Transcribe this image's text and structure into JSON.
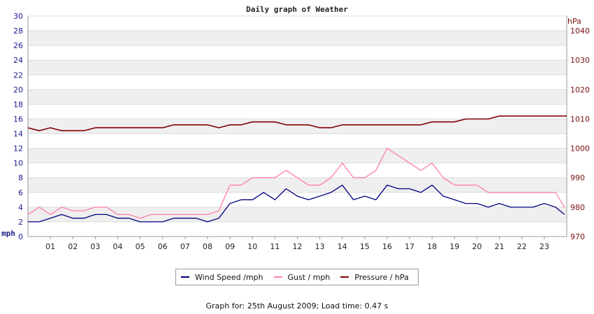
{
  "chart_data": {
    "type": "line",
    "title": "Daily graph of Weather",
    "y_left": {
      "unit": "mph",
      "range": [
        0,
        30
      ],
      "ticks": [
        "0",
        "2",
        "4",
        "6",
        "8",
        "10",
        "12",
        "14",
        "16",
        "18",
        "20",
        "22",
        "24",
        "26",
        "28",
        "30"
      ]
    },
    "y_right": {
      "unit": "hPa",
      "range": [
        970,
        1045
      ],
      "ticks": [
        "970",
        "980",
        "990",
        "1000",
        "1010",
        "1020",
        "1030",
        "1040"
      ]
    },
    "x": {
      "range": [
        0,
        24
      ],
      "ticks": [
        "01",
        "02",
        "03",
        "04",
        "05",
        "06",
        "07",
        "08",
        "09",
        "10",
        "11",
        "12",
        "13",
        "14",
        "15",
        "16",
        "17",
        "18",
        "19",
        "20",
        "21",
        "22",
        "23"
      ]
    },
    "grid": "horizontal bands",
    "legend_position": "bottom",
    "series": [
      {
        "name": "Wind Speed /mph",
        "axis": "left",
        "color": "#000080",
        "x": [
          0,
          0.5,
          1,
          1.5,
          2,
          2.5,
          3,
          3.5,
          4,
          4.5,
          5,
          5.5,
          6,
          6.5,
          7,
          7.5,
          8,
          8.5,
          9,
          9.5,
          10,
          10.5,
          11,
          11.5,
          12,
          12.5,
          13,
          13.5,
          14,
          14.5,
          15,
          15.5,
          16,
          16.5,
          17,
          17.5,
          18,
          18.5,
          19,
          19.5,
          20,
          20.5,
          21,
          21.5,
          22,
          22.5,
          23,
          23.5,
          23.9
        ],
        "values": [
          2,
          2,
          2.5,
          3,
          2.5,
          2.5,
          3,
          3,
          2.5,
          2.5,
          2,
          2,
          2,
          2.5,
          2.5,
          2.5,
          2,
          2.5,
          4.5,
          5,
          5,
          6,
          5,
          6.5,
          5.5,
          5,
          5.5,
          6,
          7,
          5,
          5.5,
          5,
          7,
          6.5,
          6.5,
          6,
          7,
          5.5,
          5,
          4.5,
          4.5,
          4,
          4.5,
          4,
          4,
          4,
          4.5,
          4,
          3
        ]
      },
      {
        "name": "Gust / mph",
        "axis": "left",
        "color": "#ff7fae",
        "x": [
          0,
          0.5,
          1,
          1.5,
          2,
          2.5,
          3,
          3.5,
          4,
          4.5,
          5,
          5.5,
          6,
          6.5,
          7,
          7.5,
          8,
          8.5,
          9,
          9.5,
          10,
          10.5,
          11,
          11.5,
          12,
          12.5,
          13,
          13.5,
          14,
          14.5,
          15,
          15.5,
          16,
          16.5,
          17,
          17.5,
          18,
          18.5,
          19,
          19.5,
          20,
          20.5,
          21,
          21.5,
          22,
          22.5,
          23,
          23.5,
          23.9
        ],
        "values": [
          3,
          4,
          3,
          4,
          3.5,
          3.5,
          4,
          4,
          3,
          3,
          2.5,
          3,
          3,
          3,
          3,
          3,
          3,
          3.5,
          7,
          7,
          8,
          8,
          8,
          9,
          8,
          7,
          7,
          8,
          10,
          8,
          8,
          9,
          12,
          11,
          10,
          9,
          10,
          8,
          7,
          7,
          7,
          6,
          6,
          6,
          6,
          6,
          6,
          6,
          4
        ]
      },
      {
        "name": "Pressure / hPa",
        "axis": "right",
        "color": "#800000",
        "x": [
          0,
          0.5,
          1,
          1.5,
          2,
          2.5,
          3,
          3.5,
          4,
          4.5,
          5,
          5.5,
          6,
          6.5,
          7,
          7.5,
          8,
          8.5,
          9,
          9.5,
          10,
          10.5,
          11,
          11.5,
          12,
          12.5,
          13,
          13.5,
          14,
          14.5,
          15,
          15.5,
          16,
          16.5,
          17,
          17.5,
          18,
          18.5,
          19,
          19.5,
          20,
          20.5,
          21,
          21.5,
          22,
          22.5,
          23,
          23.5,
          24
        ],
        "values": [
          1007,
          1006,
          1007,
          1006,
          1006,
          1006,
          1007,
          1007,
          1007,
          1007,
          1007,
          1007,
          1007,
          1008,
          1008,
          1008,
          1008,
          1007,
          1008,
          1008,
          1009,
          1009,
          1009,
          1008,
          1008,
          1008,
          1007,
          1007,
          1008,
          1008,
          1008,
          1008,
          1008,
          1008,
          1008,
          1008,
          1009,
          1009,
          1009,
          1010,
          1010,
          1010,
          1011,
          1011,
          1011,
          1011,
          1011,
          1011,
          1011
        ]
      }
    ]
  },
  "legend": {
    "wind_label": "Wind Speed /mph",
    "gust_label": "Gust / mph",
    "pressure_label": "Pressure / hPa",
    "wind_color": "#000080",
    "gust_color": "#ff7fae",
    "pressure_color": "#800000"
  },
  "footer": {
    "text": "Graph for: 25th August 2009; Load time: 0.47 s"
  }
}
